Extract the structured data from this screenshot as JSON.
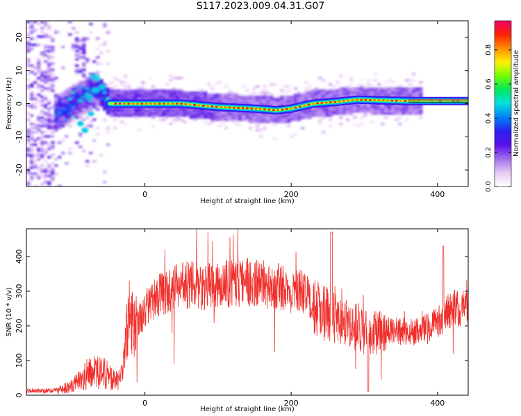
{
  "figure_title": "S117.2023.009.04.31.G07",
  "colors": {
    "snr_line": "#f0302c",
    "frame": "#000000"
  },
  "chart_data": [
    {
      "type": "heatmap",
      "title": "",
      "xlabel": "Height of straight line (km)",
      "ylabel": "Frequency (Hz)",
      "xlim": [
        -162,
        442
      ],
      "ylim": [
        -25,
        25
      ],
      "xticks": [
        0,
        200,
        400
      ],
      "xtick_labels": [
        "0",
        "200",
        "400"
      ],
      "yticks": [
        20,
        10,
        0,
        -10,
        -20
      ],
      "ytick_labels": [
        "20",
        "10",
        "0",
        "-10",
        "-20"
      ],
      "grid": false,
      "colorbar": {
        "label": "Normalized spectral amplitude",
        "range": [
          0,
          0.97
        ],
        "ticks": [
          0.0,
          0.2,
          0.4,
          0.6,
          0.8
        ],
        "tick_labels": [
          "0.0",
          "0.2",
          "0.4",
          "0.6",
          "0.8"
        ],
        "colormap": [
          "#ffffff",
          "#e8c8f4",
          "#a070ee",
          "#5a10e8",
          "#2a20f0",
          "#0080f8",
          "#00e0e0",
          "#00e860",
          "#70ff00",
          "#fff000",
          "#ff9000",
          "#ff2000",
          "#f0006a"
        ]
      },
      "ridge_frequency_hz": {
        "x": [
          -60,
          -40,
          0,
          50,
          100,
          150,
          180,
          200,
          230,
          260,
          290,
          320,
          360,
          442
        ],
        "y": [
          0,
          0,
          0,
          0,
          -1,
          -1.5,
          -2,
          -1.5,
          0,
          0.5,
          1.2,
          1.0,
          0.8,
          0.8
        ]
      }
    },
    {
      "type": "line",
      "title": "",
      "xlabel": "Height of straight line (km)",
      "ylabel": "SNR (10 * v/v)",
      "xlim": [
        -162,
        442
      ],
      "ylim": [
        0,
        480
      ],
      "xticks": [
        0,
        200,
        400
      ],
      "xtick_labels": [
        "0",
        "200",
        "400"
      ],
      "yticks": [
        0,
        100,
        200,
        300,
        400
      ],
      "ytick_labels": [
        "0",
        "100",
        "200",
        "300",
        "400"
      ],
      "grid": false,
      "series": [
        {
          "color": "#f0302c",
          "x": [
            -162,
            -140,
            -120,
            -100,
            -80,
            -60,
            -40,
            -30,
            -25,
            -20,
            -15,
            -10,
            0,
            20,
            40,
            60,
            80,
            100,
            120,
            140,
            160,
            180,
            200,
            220,
            230,
            240,
            250,
            260,
            270,
            280,
            290,
            300,
            320,
            340,
            360,
            380,
            400,
            410,
            420,
            442
          ],
          "y": [
            12,
            12,
            15,
            25,
            60,
            70,
            40,
            70,
            180,
            230,
            190,
            210,
            250,
            290,
            310,
            320,
            310,
            320,
            320,
            325,
            320,
            315,
            300,
            300,
            270,
            230,
            240,
            220,
            230,
            190,
            200,
            180,
            180,
            190,
            180,
            190,
            210,
            230,
            250,
            250
          ]
        }
      ]
    }
  ]
}
